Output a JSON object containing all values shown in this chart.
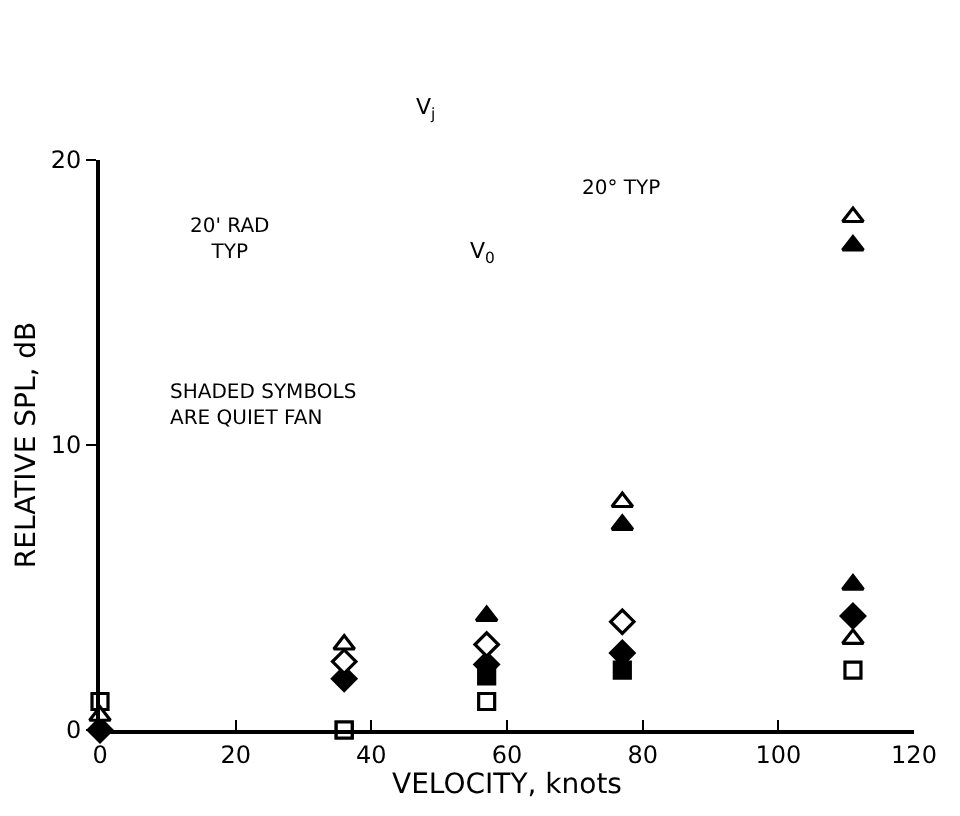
{
  "chart_data": {
    "type": "scatter",
    "xlabel": "VELOCITY, knots",
    "ylabel": "RELATIVE SPL, dB",
    "xlim": [
      0,
      120
    ],
    "xticks": [
      0,
      20,
      40,
      60,
      80,
      100,
      120
    ],
    "ylim": [
      0,
      20
    ],
    "yticks": [
      0,
      10,
      20
    ],
    "annotations": [
      "SHADED SYMBOLS\nARE QUIET FAN",
      "V$_{j}$",
      "V$_{0}$",
      "20' RAD\nTYP",
      "20° TYP"
    ],
    "series": [
      {
        "color": "#ffffff",
        "marker": "square",
        "x": [
          0,
          36,
          57,
          111
        ],
        "values": [
          1.0,
          0,
          1.0,
          2.1
        ]
      },
      {
        "color": "#000000",
        "marker": "square",
        "x": [
          36,
          57,
          77
        ],
        "values": [
          0,
          1.9,
          2.1
        ]
      },
      {
        "color": "#ffffff",
        "marker": "triangle",
        "x": [
          0,
          36,
          77,
          111,
          111
        ],
        "values": [
          0.5,
          3.0,
          8.0,
          3.2,
          18.0
        ]
      },
      {
        "color": "#000000",
        "marker": "triangle",
        "x": [
          57,
          77,
          111,
          111
        ],
        "values": [
          4.0,
          7.2,
          5.1,
          17.0
        ]
      },
      {
        "color": "#ffffff",
        "marker": "diamond",
        "x": [
          36,
          57,
          77
        ],
        "values": [
          2.4,
          3.0,
          3.8
        ]
      },
      {
        "color": "#000000",
        "marker": "diamond",
        "x": [
          0,
          36,
          57,
          77,
          111
        ],
        "values": [
          0,
          1.8,
          2.3,
          2.7,
          4.0
        ]
      }
    ]
  }
}
